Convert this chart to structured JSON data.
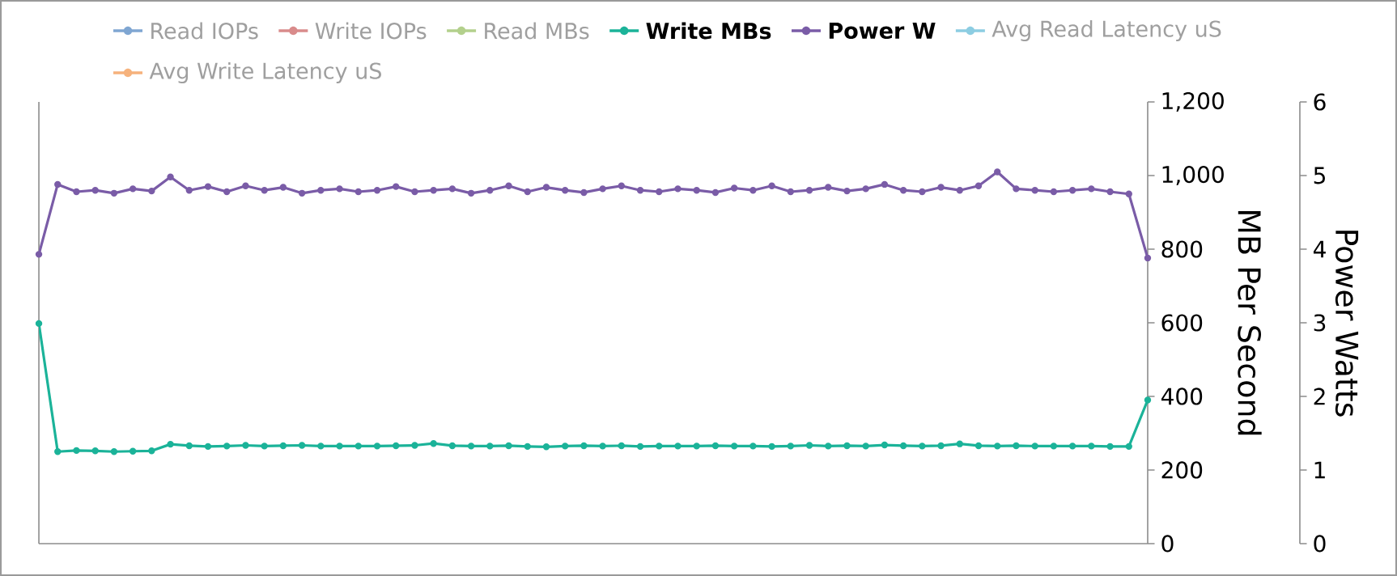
{
  "chart_data": {
    "type": "line",
    "ylabel": "MB Per Second",
    "y2label": "Power Watts",
    "legend": "top",
    "marker": "circle",
    "categories": [
      null,
      null,
      null,
      null,
      null,
      null,
      null,
      null,
      null,
      null,
      null,
      null,
      null,
      null,
      null,
      null,
      null,
      null,
      null,
      null,
      null,
      null,
      null,
      null,
      null,
      null,
      null,
      null,
      null,
      null,
      null,
      null,
      null,
      null,
      null,
      null,
      null,
      null,
      null,
      null,
      null,
      null,
      null,
      null,
      null,
      null,
      null,
      null,
      null,
      null,
      null,
      null,
      null,
      null,
      null,
      null,
      null,
      null,
      null,
      null
    ],
    "ylim": [
      0,
      1200
    ],
    "yticks": [
      0,
      200,
      400,
      600,
      800,
      {
        "value": 1000,
        "label": "1,000"
      },
      {
        "value": 1200,
        "label": "1,200"
      }
    ],
    "y2lim": [
      0,
      6
    ],
    "y2ticks": [
      0,
      1,
      2,
      3,
      4,
      5,
      6
    ],
    "tick_labels": "y",
    "series": [
      {
        "name": "Read IOPs",
        "color": "#7fa6d2",
        "values": [
          null,
          null,
          null,
          null,
          null,
          null,
          null,
          null,
          null,
          null,
          null,
          null,
          null,
          null,
          null,
          null,
          null,
          null,
          null,
          null,
          null,
          null,
          null,
          null,
          null,
          null,
          null,
          null,
          null,
          null,
          null,
          null,
          null,
          null,
          null,
          null,
          null,
          null,
          null,
          null,
          null,
          null,
          null,
          null,
          null,
          null,
          null,
          null,
          null,
          null,
          null,
          null,
          null,
          null,
          null,
          null,
          null,
          null,
          null,
          null
        ]
      },
      {
        "name": "Write IOPs",
        "color": "#d98b8b",
        "values": [
          null,
          null,
          null,
          null,
          null,
          null,
          null,
          null,
          null,
          null,
          null,
          null,
          null,
          null,
          null,
          null,
          null,
          null,
          null,
          null,
          null,
          null,
          null,
          null,
          null,
          null,
          null,
          null,
          null,
          null,
          null,
          null,
          null,
          null,
          null,
          null,
          null,
          null,
          null,
          null,
          null,
          null,
          null,
          null,
          null,
          null,
          null,
          null,
          null,
          null,
          null,
          null,
          null,
          null,
          null,
          null,
          null,
          null,
          null,
          null
        ]
      },
      {
        "name": "Read MBs",
        "color": "#b3d08c",
        "values": [
          null,
          null,
          null,
          null,
          null,
          null,
          null,
          null,
          null,
          null,
          null,
          null,
          null,
          null,
          null,
          null,
          null,
          null,
          null,
          null,
          null,
          null,
          null,
          null,
          null,
          null,
          null,
          null,
          null,
          null,
          null,
          null,
          null,
          null,
          null,
          null,
          null,
          null,
          null,
          null,
          null,
          null,
          null,
          null,
          null,
          null,
          null,
          null,
          null,
          null,
          null,
          null,
          null,
          null,
          null,
          null,
          null,
          null,
          null,
          null
        ]
      },
      {
        "name": "Write MBs",
        "color": "#1bb399",
        "values": [
          598,
          250,
          253,
          252,
          250,
          251,
          252,
          270,
          266,
          264,
          265,
          267,
          265,
          266,
          267,
          265,
          265,
          265,
          265,
          266,
          267,
          272,
          266,
          265,
          265,
          266,
          264,
          263,
          265,
          266,
          265,
          266,
          264,
          265,
          265,
          265,
          266,
          265,
          265,
          264,
          265,
          267,
          265,
          266,
          265,
          268,
          266,
          265,
          266,
          271,
          266,
          265,
          266,
          265,
          265,
          265,
          265,
          264,
          264,
          390
        ]
      },
      {
        "name": "Power W",
        "color": "#7a5ca7",
        "axis": "y2",
        "values": [
          3.93,
          4.88,
          4.78,
          4.8,
          4.76,
          4.82,
          4.79,
          4.98,
          4.8,
          4.85,
          4.78,
          4.86,
          4.8,
          4.84,
          4.76,
          4.8,
          4.82,
          4.78,
          4.8,
          4.85,
          4.78,
          4.8,
          4.82,
          4.76,
          4.8,
          4.86,
          4.78,
          4.84,
          4.8,
          4.77,
          4.82,
          4.86,
          4.8,
          4.78,
          4.82,
          4.8,
          4.77,
          4.83,
          4.8,
          4.86,
          4.78,
          4.8,
          4.84,
          4.79,
          4.82,
          4.88,
          4.8,
          4.78,
          4.84,
          4.8,
          4.86,
          5.05,
          4.82,
          4.8,
          4.78,
          4.8,
          4.82,
          4.78,
          4.75,
          3.88
        ]
      },
      {
        "name": "Avg Read Latency uS",
        "color": "#8ccde2",
        "values": [
          null,
          null,
          null,
          null,
          null,
          null,
          null,
          null,
          null,
          null,
          null,
          null,
          null,
          null,
          null,
          null,
          null,
          null,
          null,
          null,
          null,
          null,
          null,
          null,
          null,
          null,
          null,
          null,
          null,
          null,
          null,
          null,
          null,
          null,
          null,
          null,
          null,
          null,
          null,
          null,
          null,
          null,
          null,
          null,
          null,
          null,
          null,
          null,
          null,
          null,
          null,
          null,
          null,
          null,
          null,
          null,
          null,
          null,
          null,
          null
        ]
      },
      {
        "name": "Avg Write Latency uS",
        "color": "#f6b27c",
        "values": [
          null,
          null,
          null,
          null,
          null,
          null,
          null,
          null,
          null,
          null,
          null,
          null,
          null,
          null,
          null,
          null,
          null,
          null,
          null,
          null,
          null,
          null,
          null,
          null,
          null,
          null,
          null,
          null,
          null,
          null,
          null,
          null,
          null,
          null,
          null,
          null,
          null,
          null,
          null,
          null,
          null,
          null,
          null,
          null,
          null,
          null,
          null,
          null,
          null,
          null,
          null,
          null,
          null,
          null,
          null,
          null,
          null,
          null,
          null,
          null
        ]
      }
    ]
  }
}
